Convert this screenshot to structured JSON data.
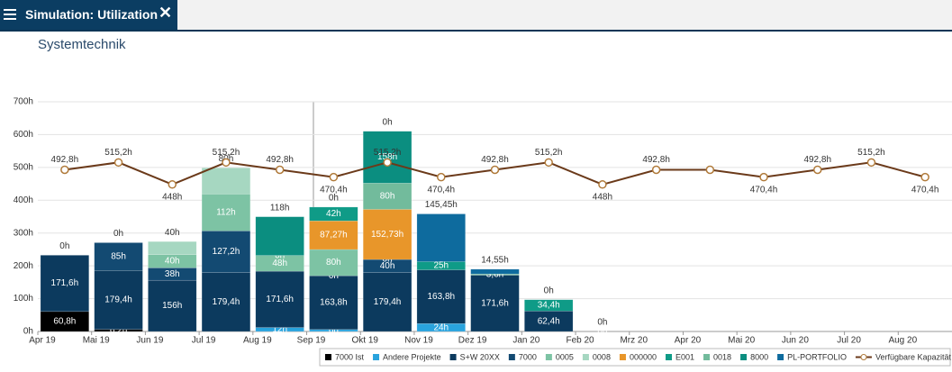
{
  "header": {
    "tab_title": "Simulation: Utilization"
  },
  "chart_data": {
    "type": "bar",
    "title": "Systemtechnik",
    "categories": [
      "Apr 19",
      "Mai 19",
      "Jun 19",
      "Jul 19",
      "Aug 19",
      "Sep 19",
      "Okt 19",
      "Nov 19",
      "Dez 19",
      "Jan 20",
      "Feb 20",
      "Mrz 20",
      "Apr 20",
      "Mai 20",
      "Jun 20",
      "Jul 20",
      "Aug 20"
    ],
    "ylim": [
      0,
      700
    ],
    "yticks": [
      {
        "value": 0,
        "label": "0h"
      },
      {
        "value": 100,
        "label": "100h"
      },
      {
        "value": 200,
        "label": "200h"
      },
      {
        "value": 300,
        "label": "300h"
      },
      {
        "value": 400,
        "label": "400h"
      },
      {
        "value": 500,
        "label": "500h"
      },
      {
        "value": 600,
        "label": "600h"
      },
      {
        "value": 700,
        "label": "700h"
      }
    ],
    "grid": true,
    "stacked": true,
    "legend": "bottom-right",
    "series": [
      {
        "name": "7000 Ist",
        "color": "#000000",
        "values": [
          60.8,
          6.2,
          null,
          null,
          null,
          null,
          null,
          null,
          null,
          null,
          null,
          null,
          null,
          null,
          null,
          null,
          null
        ],
        "value_labels": [
          "60,8h",
          "6,2h",
          null,
          null,
          null,
          null,
          null,
          null,
          null,
          null,
          null,
          null,
          null,
          null,
          null,
          null,
          null
        ]
      },
      {
        "name": "Andere Projekte",
        "color": "#29a3dd",
        "values": [
          null,
          null,
          null,
          null,
          12,
          6,
          null,
          24,
          null,
          null,
          null,
          null,
          null,
          null,
          null,
          null,
          null
        ],
        "value_labels": [
          null,
          null,
          null,
          null,
          "12h",
          "6h",
          null,
          "24h",
          null,
          null,
          null,
          null,
          null,
          null,
          null,
          null,
          null
        ]
      },
      {
        "name": "S+W 20XX",
        "color": "#0c3a5e",
        "values": [
          171.6,
          179.4,
          156,
          179.4,
          171.6,
          163.8,
          179.4,
          163.8,
          171.6,
          62.4,
          0,
          null,
          null,
          null,
          null,
          null,
          null
        ],
        "value_labels": [
          "171,6h",
          "179,4h",
          "156h",
          "179,4h",
          "171,6h",
          "163,8h",
          "179,4h",
          "163,8h",
          "171,6h",
          "62,4h",
          "0h",
          null,
          null,
          null,
          null,
          null,
          null
        ]
      },
      {
        "name": "7000",
        "color": "#134a72",
        "values": [
          null,
          85,
          38,
          127.2,
          null,
          0,
          40,
          null,
          null,
          null,
          null,
          null,
          null,
          null,
          null,
          null,
          null
        ],
        "value_labels": [
          null,
          "85h",
          "38h",
          "127,2h",
          null,
          "0h",
          "40h",
          null,
          null,
          null,
          null,
          null,
          null,
          null,
          null,
          null,
          null
        ]
      },
      {
        "name": "0005",
        "color": "#7dc3a4",
        "values": [
          null,
          null,
          40,
          112,
          48,
          80,
          0,
          null,
          3.6,
          null,
          null,
          null,
          null,
          null,
          null,
          null,
          null
        ],
        "value_labels": [
          null,
          null,
          "40h",
          "112h",
          "48h",
          "80h",
          "0h",
          null,
          "3,6h",
          null,
          null,
          null,
          null,
          null,
          null,
          null,
          null
        ]
      },
      {
        "name": "0008",
        "color": "#a6d7c1",
        "values": [
          null,
          null,
          40,
          80,
          0,
          null,
          null,
          null,
          null,
          null,
          null,
          null,
          null,
          null,
          null,
          null,
          null
        ],
        "value_labels": [
          null,
          null,
          "40h",
          "80h",
          "0h",
          null,
          null,
          null,
          null,
          null,
          null,
          null,
          null,
          null,
          null,
          null,
          null
        ]
      },
      {
        "name": "000000",
        "color": "#e8962a",
        "values": [
          null,
          null,
          null,
          null,
          null,
          87.27,
          152.73,
          null,
          null,
          null,
          null,
          null,
          null,
          null,
          null,
          null,
          null
        ],
        "value_labels": [
          null,
          null,
          null,
          null,
          null,
          "87,27h",
          "152,73h",
          null,
          null,
          null,
          null,
          null,
          null,
          null,
          null,
          null,
          null
        ]
      },
      {
        "name": "E001",
        "color": "#0f9b87",
        "values": [
          null,
          null,
          null,
          null,
          null,
          42,
          null,
          25,
          null,
          34.4,
          null,
          null,
          null,
          null,
          null,
          null,
          null
        ],
        "value_labels": [
          null,
          null,
          null,
          null,
          null,
          "42h",
          null,
          "25h",
          null,
          "34,4h",
          null,
          null,
          null,
          null,
          null,
          null,
          null
        ]
      },
      {
        "name": "0018",
        "color": "#72bb9c",
        "values": [
          null,
          null,
          null,
          null,
          null,
          null,
          80,
          null,
          null,
          null,
          null,
          null,
          null,
          null,
          null,
          null,
          null
        ],
        "value_labels": [
          null,
          null,
          null,
          null,
          null,
          null,
          "80h",
          null,
          null,
          null,
          null,
          null,
          null,
          null,
          null,
          null,
          null
        ]
      },
      {
        "name": "8000",
        "color": "#0b8e80",
        "values": [
          null,
          null,
          null,
          null,
          118,
          null,
          158,
          null,
          null,
          null,
          null,
          null,
          null,
          null,
          null,
          null,
          null
        ],
        "value_labels": [
          null,
          null,
          null,
          null,
          "118h",
          null,
          "158h",
          null,
          null,
          null,
          null,
          null,
          null,
          null,
          null,
          null,
          null
        ]
      },
      {
        "name": "PL-PORTFOLIO",
        "color": "#0e6b9e",
        "values": [
          0,
          0,
          null,
          null,
          null,
          0,
          0,
          145.45,
          14.55,
          0,
          0,
          null,
          null,
          null,
          null,
          null,
          null
        ],
        "value_labels": [
          "0h",
          "0h",
          null,
          null,
          null,
          "0h",
          "0h",
          "145,45h",
          "14,55h",
          "0h",
          "0h",
          null,
          null,
          null,
          null,
          null,
          null
        ]
      },
      {
        "name": "Verfügbare Kapazität",
        "type": "line",
        "color": "#6b3a1a",
        "values": [
          492.8,
          515.2,
          448,
          515.2,
          492.8,
          470.4,
          515.2,
          470.4,
          492.8,
          515.2,
          448,
          492.8,
          492.8,
          470.4,
          492.8,
          515.2,
          470.4
        ],
        "value_labels": [
          "492,8h",
          "515,2h",
          "448h",
          "515,2h",
          "492,8h",
          "470,4h",
          "515,2h",
          "470,4h",
          "492,8h",
          "515,2h",
          "448h",
          "492,8h",
          null,
          "470,4h",
          "492,8h",
          "515,2h",
          "470,4h"
        ]
      }
    ]
  }
}
